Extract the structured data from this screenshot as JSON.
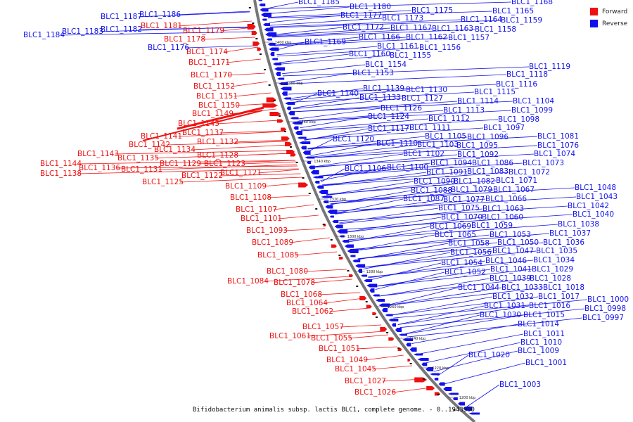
{
  "colors": {
    "forward": "#ee1111",
    "reverse": "#1111ee",
    "backbone": "#777777",
    "background": "#ffffff"
  },
  "legend": [
    {
      "label": "Forward",
      "color": "#ee1111"
    },
    {
      "label": "Reverse",
      "color": "#1111ee"
    }
  ],
  "caption": "Bifidobacterium animalis subsp. lactis BLC1, complete genome. - 0..1943990",
  "kbp_ticks": [
    "1400 kbp",
    "1380 kbp",
    "1360 kbp",
    "1340 kbp",
    "1320 kbp",
    "1300 kbp",
    "1280 kbp",
    "1260 kbp",
    "1240 kbp",
    "1220 kbp",
    "1200 kbp"
  ],
  "forward_genes": [
    "BLC1_1181",
    "BLC1_1179",
    "BLC1_1178",
    "BLC1_1174",
    "BLC1_1171",
    "BLC1_1170",
    "BLC1_1152",
    "BLC1_1151",
    "BLC1_1150",
    "BLC1_1149",
    "BLC1_1145",
    "BLC1_1137",
    "BLC1_1141",
    "BLC1_1142",
    "BLC1_1132",
    "BLC1_1134",
    "BLC1_1143",
    "BLC1_1128",
    "BLC1_1135",
    "BLC1_1144",
    "BLC1_1136",
    "BLC1_1131",
    "BLC1_1129",
    "BLC1_1123",
    "BLC1_1138",
    "BLC1_1121",
    "BLC1_1122",
    "BLC1_1125",
    "BLC1_1109",
    "BLC1_1108",
    "BLC1_1107",
    "BLC1_1101",
    "BLC1_1093",
    "BLC1_1089",
    "BLC1_1085",
    "BLC1_1080",
    "BLC1_1084",
    "BLC1_1078",
    "BLC1_1068",
    "BLC1_1064",
    "BLC1_1062",
    "BLC1_1057",
    "BLC1_1061",
    "BLC1_1055",
    "BLC1_1051",
    "BLC1_1049",
    "BLC1_1045",
    "BLC1_1027",
    "BLC1_1026"
  ],
  "reverse_genes_left": [
    "BLC1_1187",
    "BLC1_1186",
    "BLC1_1182",
    "BLC1_1183",
    "BLC1_1184",
    "BLC1_1176"
  ],
  "reverse_genes_right": [
    "BLC1_1185",
    "BLC1_1180",
    "BLC1_1177",
    "BLC1_1175",
    "BLC1_1173",
    "BLC1_1168",
    "BLC1_1165",
    "BLC1_1164",
    "BLC1_1159",
    "BLC1_1172",
    "BLC1_1167",
    "BLC1_1163",
    "BLC1_1158",
    "BLC1_1166",
    "BLC1_1162",
    "BLC1_1157",
    "BLC1_1169",
    "BLC1_1161",
    "BLC1_1156",
    "BLC1_1160",
    "BLC1_1155",
    "BLC1_1154",
    "BLC1_1153",
    "BLC1_1119",
    "BLC1_1118",
    "BLC1_1116",
    "BLC1_1139",
    "BLC1_1130",
    "BLC1_1115",
    "BLC1_1140",
    "BLC1_1133",
    "BLC1_1127",
    "BLC1_1114",
    "BLC1_1104",
    "BLC1_1126",
    "BLC1_1113",
    "BLC1_1099",
    "BLC1_1124",
    "BLC1_1112",
    "BLC1_1098",
    "BLC1_1117",
    "BLC1_1111",
    "BLC1_1097",
    "BLC1_1105",
    "BLC1_1096",
    "BLC1_1081",
    "BLC1_1120",
    "BLC1_1110",
    "BLC1_1103",
    "BLC1_1095",
    "BLC1_1076",
    "BLC1_1102",
    "BLC1_1092",
    "BLC1_1074",
    "BLC1_1094",
    "BLC1_1086",
    "BLC1_1073",
    "BLC1_1106",
    "BLC1_1100",
    "BLC1_1091",
    "BLC1_1083",
    "BLC1_1072",
    "BLC1_1090",
    "BLC1_1082",
    "BLC1_1071",
    "BLC1_1088",
    "BLC1_1079",
    "BLC1_1067",
    "BLC1_1087",
    "BLC1_1077",
    "BLC1_1066",
    "BLC1_1075",
    "BLC1_1063",
    "BLC1_1070",
    "BLC1_1060",
    "BLC1_1069",
    "BLC1_1059",
    "BLC1_1065",
    "BLC1_1053",
    "BLC1_1058",
    "BLC1_1050",
    "BLC1_1056",
    "BLC1_1047",
    "BLC1_1054",
    "BLC1_1046",
    "BLC1_1052",
    "BLC1_1041",
    "BLC1_1039",
    "BLC1_1033",
    "BLC1_1044",
    "BLC1_1032",
    "BLC1_1031",
    "BLC1_1030",
    "BLC1_1048",
    "BLC1_1043",
    "BLC1_1042",
    "BLC1_1040",
    "BLC1_1038",
    "BLC1_1037",
    "BLC1_1036",
    "BLC1_1035",
    "BLC1_1034",
    "BLC1_1029",
    "BLC1_1028",
    "BLC1_1018",
    "BLC1_1017",
    "BLC1_1016",
    "BLC1_1015",
    "BLC1_1014",
    "BLC1_1011",
    "BLC1_1010",
    "BLC1_1009",
    "BLC1_1020",
    "BLC1_1001",
    "BLC1_1003",
    "BLC1_1000",
    "BLC1_0998",
    "BLC1_0997"
  ]
}
